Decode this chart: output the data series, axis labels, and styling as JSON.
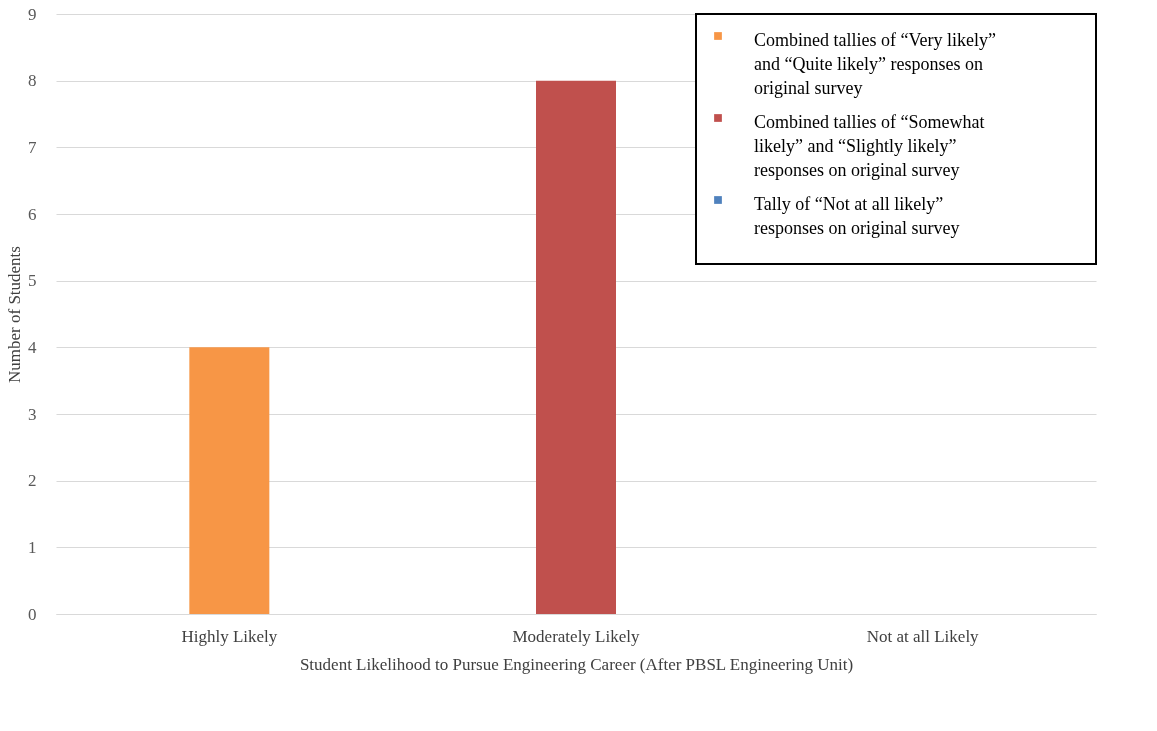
{
  "chart_data": {
    "type": "bar",
    "xlabel": "Student Likelihood to Pursue Engineering Career (After PBSL Engineering Unit)",
    "ylabel": "Number of Students",
    "categories": [
      "Highly Likely",
      "Moderately Likely",
      "Not at all Likely"
    ],
    "series": [
      {
        "name": "Combined tallies of “Very likely” and “Quite likely” responses on original survey",
        "color": "#f79646",
        "values": [
          4,
          null,
          null
        ]
      },
      {
        "name": "Combined tallies of “Somewhat likely” and “Slightly likely” responses on original survey",
        "color": "#c0504d",
        "values": [
          null,
          8,
          null
        ]
      },
      {
        "name": "Tally of “Not at all likely” responses on original survey",
        "color": "#4f81bd",
        "values": [
          null,
          null,
          0
        ]
      }
    ],
    "ylim": [
      0,
      9
    ],
    "yticks": [
      0,
      1,
      2,
      3,
      4,
      5,
      6,
      7,
      8,
      9
    ],
    "grid": "y",
    "legend": "top right"
  }
}
